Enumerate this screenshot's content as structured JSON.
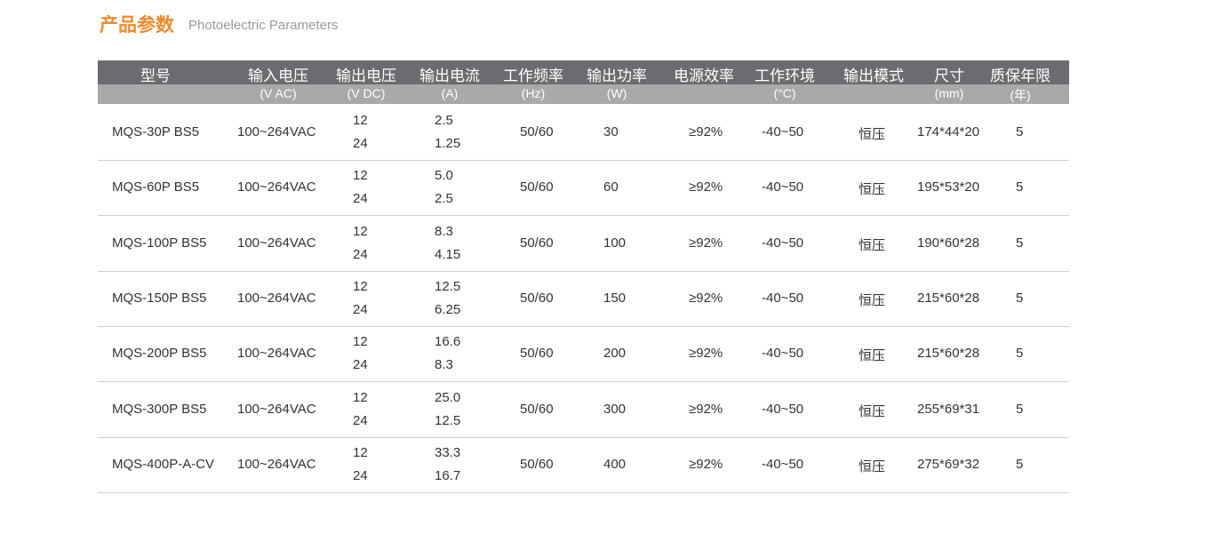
{
  "title": "产品参数",
  "subtitle": "Photoelectric Parameters",
  "headers": [
    {
      "label": "型号",
      "unit": ""
    },
    {
      "label": "输入电压",
      "unit": "(V AC)"
    },
    {
      "label": "输出电压",
      "unit": "(V DC)"
    },
    {
      "label": "输出电流",
      "unit": "(A)"
    },
    {
      "label": "工作频率",
      "unit": "(Hz)"
    },
    {
      "label": "输出功率",
      "unit": "(W)"
    },
    {
      "label": "电源效率",
      "unit": ""
    },
    {
      "label": "工作环境",
      "unit": "(°C)"
    },
    {
      "label": "输出模式",
      "unit": ""
    },
    {
      "label": "尺寸",
      "unit": "(mm)"
    },
    {
      "label": "质保年限",
      "unit": "(年)"
    }
  ],
  "rows": [
    {
      "model": "MQS-30P BS5",
      "input": "100~264VAC",
      "v1": "12",
      "v2": "24",
      "a1": "2.5",
      "a2": "1.25",
      "freq": "50/60",
      "power": "30",
      "eff": "≥92%",
      "env": "-40~50",
      "mode": "恒压",
      "size": "174*44*20",
      "warranty": "5"
    },
    {
      "model": "MQS-60P BS5",
      "input": "100~264VAC",
      "v1": "12",
      "v2": "24",
      "a1": "5.0",
      "a2": "2.5",
      "freq": "50/60",
      "power": "60",
      "eff": "≥92%",
      "env": "-40~50",
      "mode": "恒压",
      "size": "195*53*20",
      "warranty": "5"
    },
    {
      "model": "MQS-100P BS5",
      "input": "100~264VAC",
      "v1": "12",
      "v2": "24",
      "a1": "8.3",
      "a2": "4.15",
      "freq": "50/60",
      "power": "100",
      "eff": "≥92%",
      "env": "-40~50",
      "mode": "恒压",
      "size": "190*60*28",
      "warranty": "5"
    },
    {
      "model": "MQS-150P BS5",
      "input": "100~264VAC",
      "v1": "12",
      "v2": "24",
      "a1": "12.5",
      "a2": "6.25",
      "freq": "50/60",
      "power": "150",
      "eff": "≥92%",
      "env": "-40~50",
      "mode": "恒压",
      "size": "215*60*28",
      "warranty": "5"
    },
    {
      "model": "MQS-200P BS5",
      "input": "100~264VAC",
      "v1": "12",
      "v2": "24",
      "a1": "16.6",
      "a2": "8.3",
      "freq": "50/60",
      "power": "200",
      "eff": "≥92%",
      "env": "-40~50",
      "mode": "恒压",
      "size": "215*60*28",
      "warranty": "5"
    },
    {
      "model": "MQS-300P BS5",
      "input": "100~264VAC",
      "v1": "12",
      "v2": "24",
      "a1": "25.0",
      "a2": "12.5",
      "freq": "50/60",
      "power": "300",
      "eff": "≥92%",
      "env": "-40~50",
      "mode": "恒压",
      "size": "255*69*31",
      "warranty": "5"
    },
    {
      "model": "MQS-400P-A-CV",
      "input": "100~264VAC",
      "v1": "12",
      "v2": "24",
      "a1": "33.3",
      "a2": "16.7",
      "freq": "50/60",
      "power": "400",
      "eff": "≥92%",
      "env": "-40~50",
      "mode": "恒压",
      "size": "275*69*32",
      "warranty": "5"
    }
  ]
}
